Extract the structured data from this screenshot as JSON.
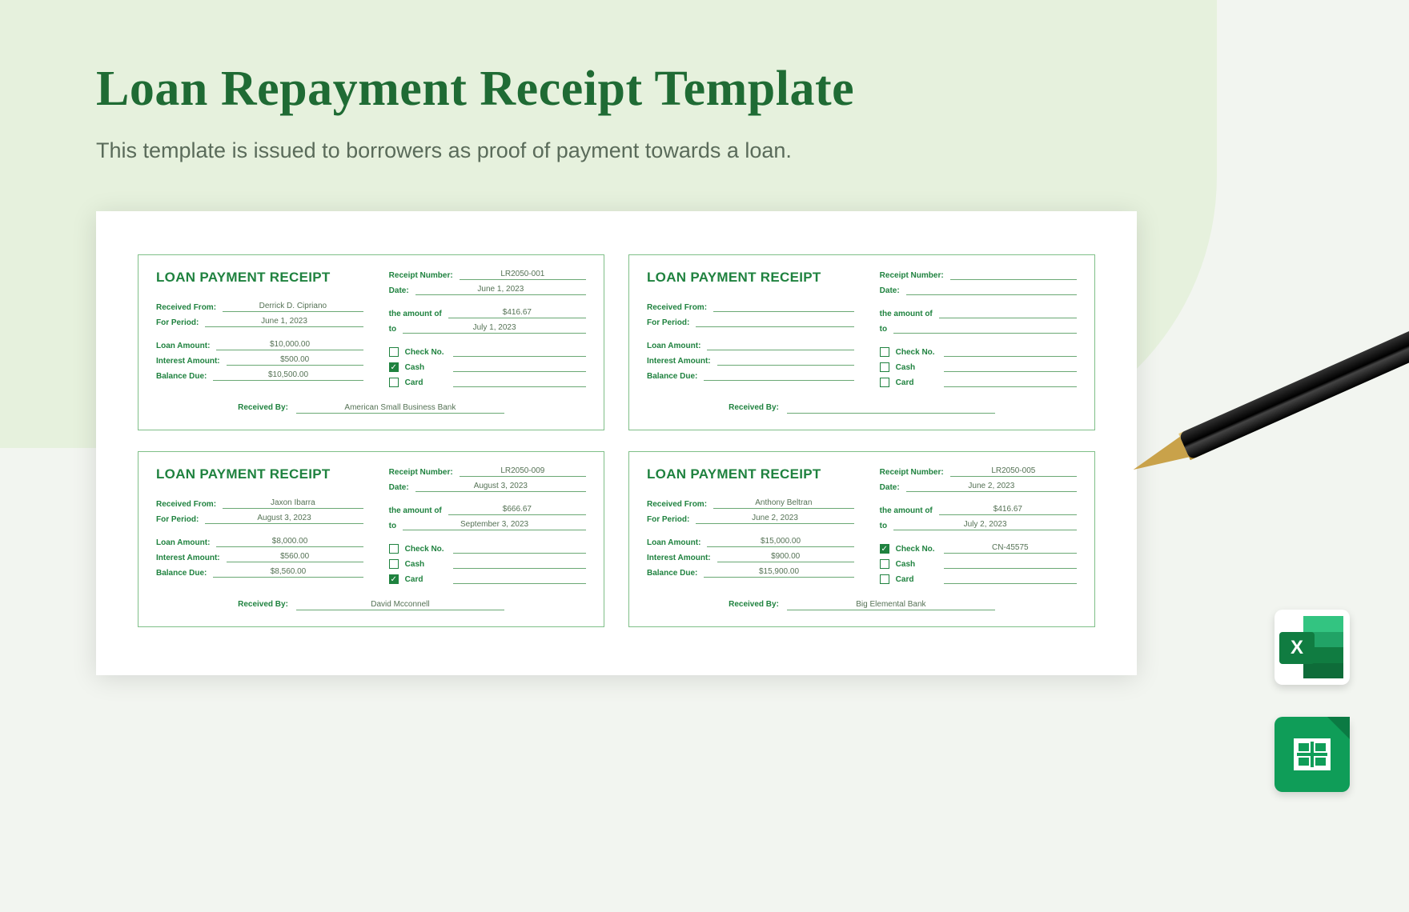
{
  "header": {
    "title": "Loan Repayment Receipt Template",
    "subtitle": "This template is issued to borrowers as proof of payment towards a loan."
  },
  "labels": {
    "receipt_title": "LOAN PAYMENT RECEIPT",
    "receipt_number": "Receipt Number:",
    "date": "Date:",
    "received_from": "Received From:",
    "the_amount_of": "the amount of",
    "for_period": "For Period:",
    "to": "to",
    "loan_amount": "Loan Amount:",
    "interest_amount": "Interest Amount:",
    "balance_due": "Balance Due:",
    "check_no": "Check No.",
    "cash": "Cash",
    "card": "Card",
    "received_by": "Received By:"
  },
  "receipts": [
    {
      "receipt_number": "LR2050-001",
      "date": "June 1, 2023",
      "received_from": "Derrick D. Cipriano",
      "amount": "$416.67",
      "period_from": "June 1, 2023",
      "period_to": "July 1, 2023",
      "loan_amount": "$10,000.00",
      "interest_amount": "$500.00",
      "balance_due": "$10,500.00",
      "check": false,
      "check_no": "",
      "cash": true,
      "card": false,
      "received_by": "American Small Business Bank"
    },
    {
      "receipt_number": "",
      "date": "",
      "received_from": "",
      "amount": "",
      "period_from": "",
      "period_to": "",
      "loan_amount": "",
      "interest_amount": "",
      "balance_due": "",
      "check": false,
      "check_no": "",
      "cash": false,
      "card": false,
      "received_by": ""
    },
    {
      "receipt_number": "LR2050-009",
      "date": "August 3, 2023",
      "received_from": "Jaxon Ibarra",
      "amount": "$666.67",
      "period_from": "August 3, 2023",
      "period_to": "September 3, 2023",
      "loan_amount": "$8,000.00",
      "interest_amount": "$560.00",
      "balance_due": "$8,560.00",
      "check": false,
      "check_no": "",
      "cash": false,
      "card": true,
      "received_by": "David Mcconnell"
    },
    {
      "receipt_number": "LR2050-005",
      "date": "June 2, 2023",
      "received_from": "Anthony Beltran",
      "amount": "$416.67",
      "period_from": "June 2, 2023",
      "period_to": "July 2, 2023",
      "loan_amount": "$15,000.00",
      "interest_amount": "$900.00",
      "balance_due": "$15,900.00",
      "check": true,
      "check_no": "CN-45575",
      "cash": false,
      "card": false,
      "received_by": "Big Elemental Bank"
    }
  ],
  "colors": {
    "primary": "#1f823f",
    "field_border": "#6aa874",
    "bg_light": "#e6f1dd",
    "page_bg": "#f2f5f0"
  },
  "app_icons": [
    "excel",
    "google-sheets"
  ]
}
